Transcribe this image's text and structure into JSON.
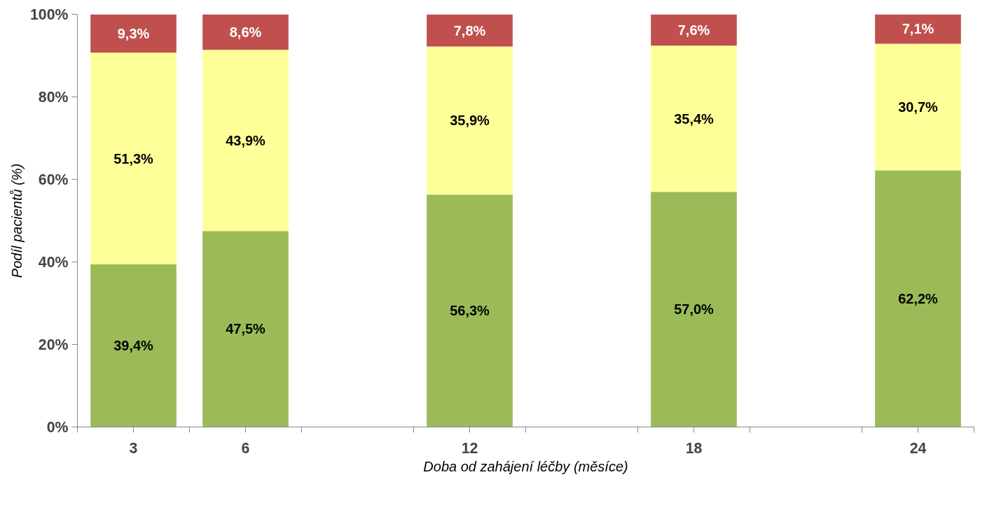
{
  "chart_data": {
    "type": "bar",
    "stacked": true,
    "xlabel": "Doba od zahájení léčby (měsíce)",
    "ylabel": "Podíl pacientů (%)",
    "x": [
      3,
      6,
      12,
      18,
      24
    ],
    "xlim": [
      1.5,
      25.5
    ],
    "xticks": [
      {
        "value": 3,
        "label": "3"
      },
      {
        "value": 6,
        "label": "6"
      },
      {
        "value": 12,
        "label": "12"
      },
      {
        "value": 18,
        "label": "18"
      },
      {
        "value": 24,
        "label": "24"
      },
      {
        "value": 1.5,
        "label": null
      },
      {
        "value": 4.5,
        "label": null
      },
      {
        "value": 7.5,
        "label": null
      },
      {
        "value": 10.5,
        "label": null
      },
      {
        "value": 13.5,
        "label": null
      },
      {
        "value": 16.5,
        "label": null
      },
      {
        "value": 19.5,
        "label": null
      },
      {
        "value": 22.5,
        "label": null
      },
      {
        "value": 25.5,
        "label": null
      }
    ],
    "ylim": [
      0,
      100
    ],
    "yticks": [
      {
        "value": 0,
        "label": "0%"
      },
      {
        "value": 20,
        "label": "20%"
      },
      {
        "value": 40,
        "label": "40%"
      },
      {
        "value": 60,
        "label": "60%"
      },
      {
        "value": 80,
        "label": "80%"
      },
      {
        "value": 100,
        "label": "100%"
      }
    ],
    "series": [
      {
        "color": "#9bbb59",
        "values": [
          39.4,
          47.5,
          56.3,
          57.0,
          62.2
        ],
        "value_labels": [
          "39,4%",
          "47,5%",
          "56,3%",
          "57,0%",
          "62,2%"
        ]
      },
      {
        "color": "#ffff99",
        "values": [
          51.3,
          43.9,
          35.9,
          35.4,
          30.7
        ],
        "value_labels": [
          "51,3%",
          "43,9%",
          "35,9%",
          "35,4%",
          "30,7%"
        ]
      },
      {
        "color": "#c0504d",
        "values": [
          9.3,
          8.6,
          7.8,
          7.6,
          7.1
        ],
        "value_labels": [
          "9,3%",
          "8,6%",
          "7,8%",
          "7,6%",
          "7,1%"
        ]
      }
    ],
    "grid": false
  }
}
